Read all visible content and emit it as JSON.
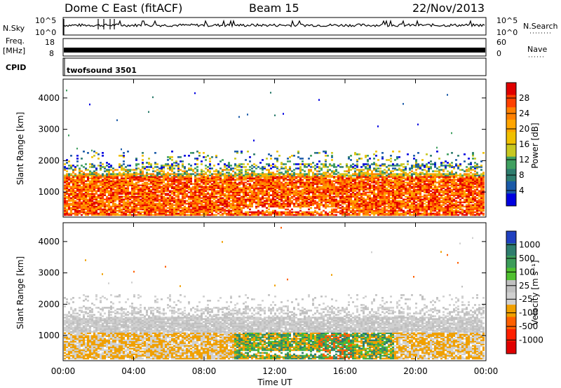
{
  "header": {
    "station": "Dome C East (fitACF)",
    "beam": "Beam 15",
    "date": "22/Nov/2013"
  },
  "top_panels": {
    "nsky_label": "N.Sky",
    "nsky_ticks": [
      "10^5",
      "10^0"
    ],
    "nsearch_label": "N.Search",
    "nsearch_ticks": [
      "10^5",
      "10^0"
    ],
    "freq_label": "Freq.",
    "freq_unit": "[MHz]",
    "freq_ticks": [
      "18",
      "8"
    ],
    "nave_label": "Nave",
    "nave_ticks": [
      "60",
      "0"
    ],
    "cpid_label": "CPID",
    "cpid_value": "twofsound 3501"
  },
  "chart_data": [
    {
      "type": "heatmap",
      "panel": "power",
      "ylabel": "Slant Range [km]",
      "yticks": [
        "1000",
        "2000",
        "3000",
        "4000"
      ],
      "ylim": [
        200,
        4600
      ],
      "x": [
        "00:00",
        "04:00",
        "08:00",
        "12:00",
        "16:00",
        "20:00",
        "00:00"
      ],
      "colorbar_label": "Power [dB]",
      "colorbar_ticks": [
        "28",
        "24",
        "20",
        "16",
        "12",
        "8",
        "4"
      ],
      "colors": [
        "#e00000",
        "#ff4000",
        "#ff8000",
        "#ffa500",
        "#f0c000",
        "#c8c820",
        "#40a060",
        "#2e7d6e",
        "#1a5aa8",
        "#0000e0"
      ],
      "description_bands": [
        {
          "range_km": [
            350,
            1650
          ],
          "level": "high"
        },
        {
          "range_km": [
            1650,
            2200
          ],
          "level": "low"
        }
      ]
    },
    {
      "type": "heatmap",
      "panel": "velocity",
      "ylabel": "Slant Range [km]",
      "yticks": [
        "1000",
        "2000",
        "3000",
        "4000"
      ],
      "ylim": [
        200,
        4600
      ],
      "x": [
        "00:00",
        "04:00",
        "08:00",
        "12:00",
        "16:00",
        "20:00",
        "00:00"
      ],
      "xlabel": "Time UT",
      "colorbar_label": "Velocity [m s⁻¹]",
      "colorbar_ticks": [
        "1000",
        "500",
        "100",
        "25",
        "-25",
        "-100",
        "-500",
        "-1000"
      ],
      "colors": [
        "#2040c0",
        "#2e7d6e",
        "#3c9c5a",
        "#50c030",
        "#c0c0c0",
        "#d0d0d0",
        "#f0a000",
        "#ff6000",
        "#ff2000",
        "#e00000"
      ]
    }
  ]
}
